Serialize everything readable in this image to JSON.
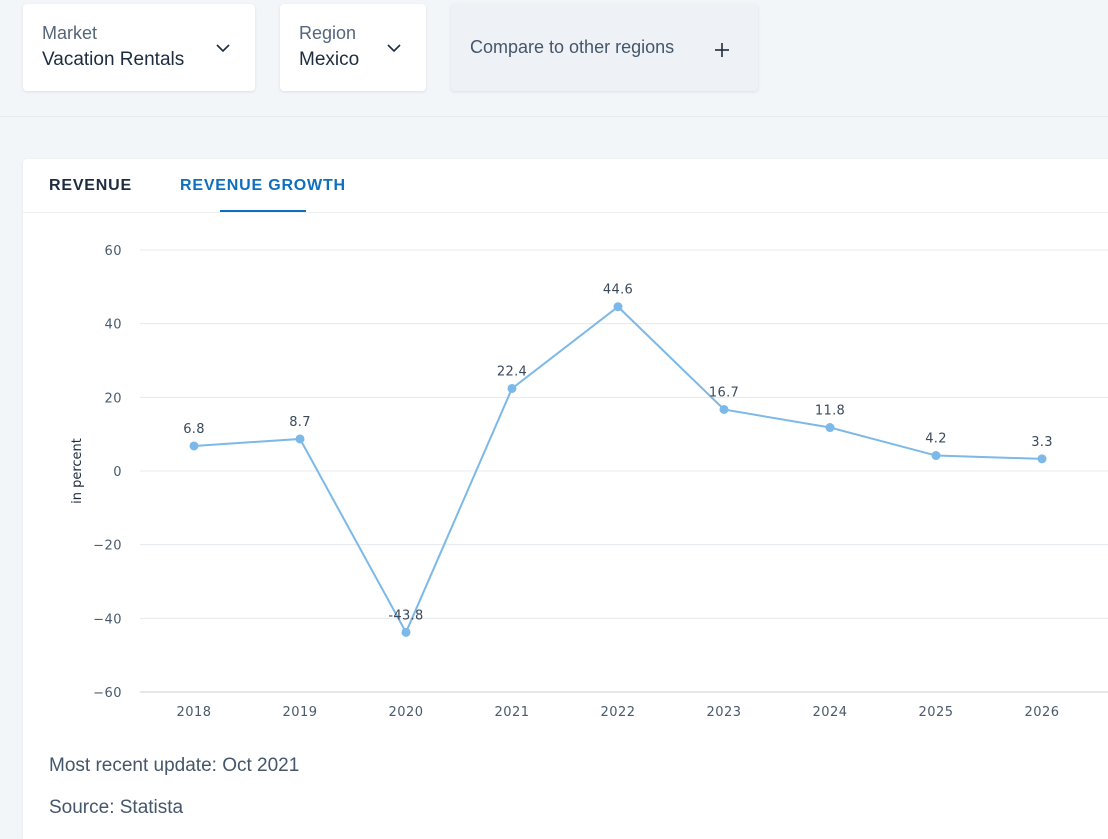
{
  "filters": {
    "market": {
      "label": "Market",
      "value": "Vacation Rentals",
      "icon": "chevron-down-icon"
    },
    "region": {
      "label": "Region",
      "value": "Mexico",
      "icon": "chevron-down-icon"
    },
    "compare": {
      "label": "Compare to other regions",
      "icon": "plus-icon"
    }
  },
  "tabs": [
    {
      "label": "REVENUE",
      "active": false
    },
    {
      "label": "REVENUE GROWTH",
      "active": true
    }
  ],
  "chart_data": {
    "type": "line",
    "ylabel": "in percent",
    "x": [
      "2018",
      "2019",
      "2020",
      "2021",
      "2022",
      "2023",
      "2024",
      "2025",
      "2026"
    ],
    "values": [
      6.8,
      8.7,
      -43.8,
      22.4,
      44.6,
      16.7,
      11.8,
      4.2,
      3.3
    ],
    "data_labels": [
      "6.8",
      "8.7",
      "-43.8",
      "22.4",
      "44.6",
      "16.7",
      "11.8",
      "4.2",
      "3.3"
    ],
    "yticks": [
      "60",
      "40",
      "20",
      "0",
      "−20",
      "−40",
      "−60"
    ],
    "ytick_values": [
      60,
      40,
      20,
      0,
      -20,
      -40,
      -60
    ],
    "ylim": [
      -60,
      60
    ],
    "grid": true,
    "line_color": "#7cb9e8"
  },
  "footer": {
    "update": "Most recent update: Oct 2021",
    "source": "Source: Statista"
  }
}
